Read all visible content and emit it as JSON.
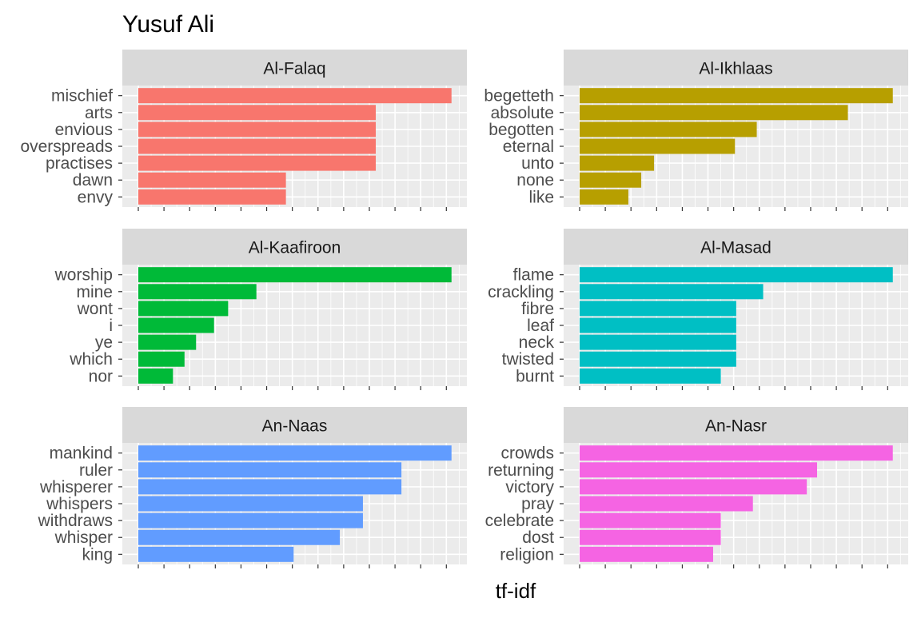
{
  "chart_data": {
    "type": "bar",
    "orientation": "horizontal",
    "faceted": true,
    "title": "Yusuf Ali",
    "xlabel": "tf-idf",
    "ylabel": "",
    "grid": true,
    "x_tick_labels_shown": false,
    "facets": [
      {
        "name": "Al-Falaq",
        "color": "#F8766D",
        "categories": [
          "mischief",
          "arts",
          "envious",
          "overspreads",
          "practises",
          "dawn",
          "envy"
        ],
        "values": [
          0.122,
          0.0925,
          0.0925,
          0.0925,
          0.0925,
          0.0575,
          0.0575
        ]
      },
      {
        "name": "Al-Ikhlaas",
        "color": "#B79F00",
        "categories": [
          "begetteth",
          "absolute",
          "begotten",
          "eternal",
          "unto",
          "none",
          "like"
        ],
        "values": [
          0.122,
          0.1045,
          0.069,
          0.0605,
          0.029,
          0.024,
          0.019
        ]
      },
      {
        "name": "Al-Kaafiroon",
        "color": "#00BA38",
        "categories": [
          "worship",
          "mine",
          "wont",
          "i",
          "ye",
          "which",
          "nor"
        ],
        "values": [
          0.122,
          0.046,
          0.035,
          0.0295,
          0.0225,
          0.018,
          0.0135
        ]
      },
      {
        "name": "Al-Masad",
        "color": "#00BFC4",
        "categories": [
          "flame",
          "crackling",
          "fibre",
          "leaf",
          "neck",
          "twisted",
          "burnt"
        ],
        "values": [
          0.122,
          0.0715,
          0.061,
          0.061,
          0.061,
          0.061,
          0.055
        ]
      },
      {
        "name": "An-Naas",
        "color": "#619CFF",
        "categories": [
          "mankind",
          "ruler",
          "whisperer",
          "whispers",
          "withdraws",
          "whisper",
          "king"
        ],
        "values": [
          0.122,
          0.1025,
          0.1025,
          0.0875,
          0.0875,
          0.0785,
          0.0605
        ]
      },
      {
        "name": "An-Nasr",
        "color": "#F564E3",
        "categories": [
          "crowds",
          "returning",
          "victory",
          "pray",
          "celebrate",
          "dost",
          "religion"
        ],
        "values": [
          0.122,
          0.0925,
          0.0885,
          0.0675,
          0.055,
          0.055,
          0.052
        ]
      }
    ]
  }
}
